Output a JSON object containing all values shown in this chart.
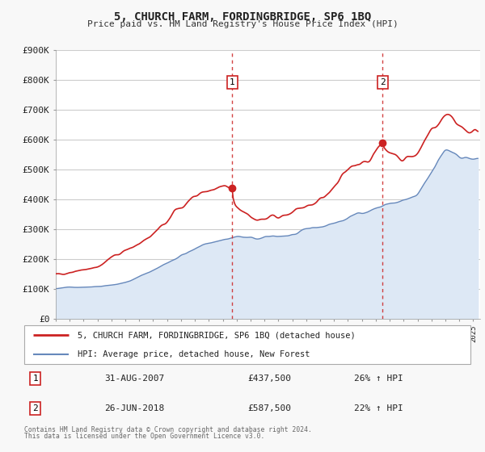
{
  "title": "5, CHURCH FARM, FORDINGBRIDGE, SP6 1BQ",
  "subtitle": "Price paid vs. HM Land Registry's House Price Index (HPI)",
  "ylim": [
    0,
    900000
  ],
  "yticks": [
    0,
    100000,
    200000,
    300000,
    400000,
    500000,
    600000,
    700000,
    800000,
    900000
  ],
  "ytick_labels": [
    "£0",
    "£100K",
    "£200K",
    "£300K",
    "£400K",
    "£500K",
    "£600K",
    "£700K",
    "£800K",
    "£900K"
  ],
  "xlim_start": 1995.0,
  "xlim_end": 2025.5,
  "fig_bg_color": "#f8f8f8",
  "plot_bg_color": "#ffffff",
  "grid_color": "#cccccc",
  "red_line_color": "#cc2222",
  "blue_line_color": "#6688bb",
  "blue_fill_color": "#dde8f5",
  "sale1_x": 2007.667,
  "sale1_y": 437500,
  "sale1_label": "1",
  "sale1_date": "31-AUG-2007",
  "sale1_price": "£437,500",
  "sale1_hpi": "26% ↑ HPI",
  "sale2_x": 2018.479,
  "sale2_y": 587500,
  "sale2_label": "2",
  "sale2_date": "26-JUN-2018",
  "sale2_price": "£587,500",
  "sale2_hpi": "22% ↑ HPI",
  "legend_line1": "5, CHURCH FARM, FORDINGBRIDGE, SP6 1BQ (detached house)",
  "legend_line2": "HPI: Average price, detached house, New Forest",
  "footer1": "Contains HM Land Registry data © Crown copyright and database right 2024.",
  "footer2": "This data is licensed under the Open Government Licence v3.0."
}
